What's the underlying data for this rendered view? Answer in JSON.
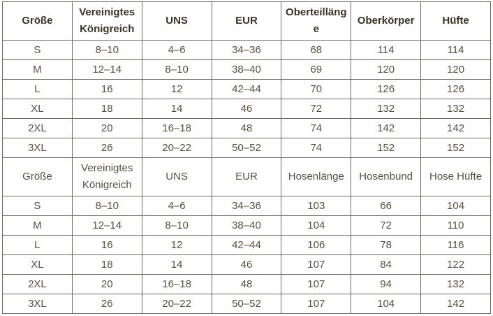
{
  "colors": {
    "background": "#ffffff",
    "border": "#6e6a62",
    "header_text": "#3b3227",
    "body_text": "#57503e"
  },
  "table": {
    "sections": [
      {
        "name": "tops",
        "header_bold": true,
        "headers": [
          "Größe",
          "Vereinigtes Königreich",
          "UNS",
          "EUR",
          "Oberteillänge",
          "Oberkörper",
          "Hüfte"
        ],
        "rows": [
          [
            "S",
            "8–10",
            "4–6",
            "34–36",
            "68",
            "114",
            "114"
          ],
          [
            "M",
            "12–14",
            "8–10",
            "38–40",
            "69",
            "120",
            "120"
          ],
          [
            "L",
            "16",
            "12",
            "42–44",
            "70",
            "126",
            "126"
          ],
          [
            "XL",
            "18",
            "14",
            "46",
            "72",
            "132",
            "132"
          ],
          [
            "2XL",
            "20",
            "16–18",
            "48",
            "74",
            "142",
            "142"
          ],
          [
            "3XL",
            "26",
            "20–22",
            "50–52",
            "74",
            "152",
            "152"
          ]
        ]
      },
      {
        "name": "pants",
        "header_bold": false,
        "headers": [
          "Größe",
          "Vereinigtes Königreich",
          "UNS",
          "EUR",
          "Hosenlänge",
          "Hosenbund",
          "Hose Hüfte"
        ],
        "rows": [
          [
            "S",
            "8–10",
            "4–6",
            "34–36",
            "103",
            "66",
            "104"
          ],
          [
            "M",
            "12–14",
            "8–10",
            "38–40",
            "104",
            "72",
            "110"
          ],
          [
            "L",
            "16",
            "12",
            "42–44",
            "106",
            "78",
            "116"
          ],
          [
            "XL",
            "18",
            "14",
            "46",
            "107",
            "84",
            "122"
          ],
          [
            "2XL",
            "20",
            "16–18",
            "48",
            "107",
            "94",
            "132"
          ],
          [
            "3XL",
            "26",
            "20–22",
            "50–52",
            "107",
            "104",
            "142"
          ]
        ]
      }
    ]
  }
}
